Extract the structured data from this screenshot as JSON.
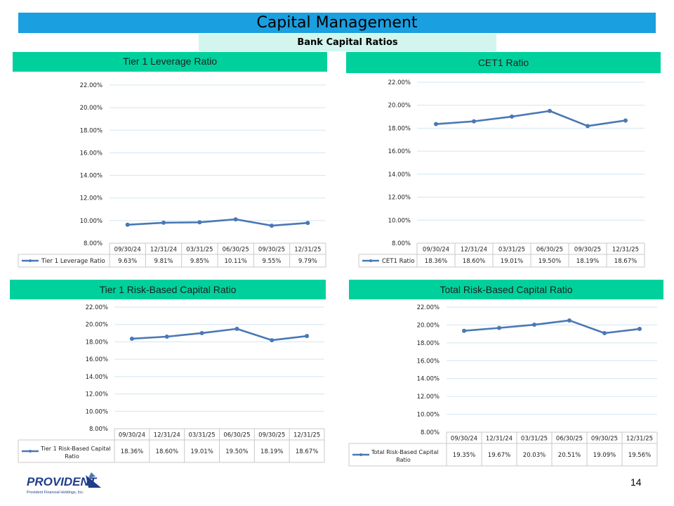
{
  "header": {
    "title": "Capital Management",
    "subtitle": "Bank Capital Ratios"
  },
  "page_number": "14",
  "logo": {
    "name": "PROVIDENT",
    "tagline": "Provident Financial Holdings, Inc."
  },
  "colors": {
    "title_bar": "#1a9fe0",
    "subtitle_bar": "#d2f5ee",
    "panel_header": "#00d19c",
    "series_line": "#4a78b5",
    "gridline": "#d0e6ef",
    "logo_blue": "#1f3d8a"
  },
  "chart_data": [
    {
      "type": "line",
      "title": "Tier 1 Leverage Ratio",
      "categories": [
        "09/30/24",
        "12/31/24",
        "03/31/25",
        "06/30/25",
        "09/30/25",
        "12/31/25"
      ],
      "series": [
        {
          "name": "Tier 1 Leverage Ratio",
          "values": [
            9.63,
            9.81,
            9.85,
            10.11,
            9.55,
            9.79
          ],
          "labels": [
            "9.63%",
            "9.81%",
            "9.85%",
            "10.11%",
            "9.55%",
            "9.79%"
          ]
        }
      ],
      "yticks": [
        "22.00%",
        "20.00%",
        "18.00%",
        "16.00%",
        "14.00%",
        "12.00%",
        "10.00%",
        "8.00%"
      ],
      "ylim": [
        8,
        22
      ],
      "grid": true,
      "legend": "data-table"
    },
    {
      "type": "line",
      "title": "CET1 Ratio",
      "categories": [
        "09/30/24",
        "12/31/24",
        "03/31/25",
        "06/30/25",
        "09/30/25",
        "12/31/25"
      ],
      "series": [
        {
          "name": "CET1 Ratio",
          "values": [
            18.36,
            18.6,
            19.01,
            19.5,
            18.19,
            18.67
          ],
          "labels": [
            "18.36%",
            "18.60%",
            "19.01%",
            "19.50%",
            "18.19%",
            "18.67%"
          ]
        }
      ],
      "yticks": [
        "22.00%",
        "20.00%",
        "18.00%",
        "16.00%",
        "14.00%",
        "12.00%",
        "10.00%",
        "8.00%"
      ],
      "ylim": [
        8,
        22
      ],
      "grid": true,
      "legend": "data-table"
    },
    {
      "type": "line",
      "title": "Tier 1 Risk-Based Capital Ratio",
      "categories": [
        "09/30/24",
        "12/31/24",
        "03/31/25",
        "06/30/25",
        "09/30/25",
        "12/31/25"
      ],
      "series": [
        {
          "name": "Tier 1 Risk-Based Capital Ratio",
          "name_lines": [
            "Tier 1 Risk-Based Capital",
            "Ratio"
          ],
          "values": [
            18.36,
            18.6,
            19.01,
            19.5,
            18.19,
            18.67
          ],
          "labels": [
            "18.36%",
            "18.60%",
            "19.01%",
            "19.50%",
            "18.19%",
            "18.67%"
          ]
        }
      ],
      "yticks": [
        "22.00%",
        "20.00%",
        "18.00%",
        "16.00%",
        "14.00%",
        "12.00%",
        "10.00%",
        "8.00%"
      ],
      "ylim": [
        8,
        22
      ],
      "grid": true,
      "legend": "data-table"
    },
    {
      "type": "line",
      "title": "Total Risk-Based Capital Ratio",
      "categories": [
        "09/30/24",
        "12/31/24",
        "03/31/25",
        "06/30/25",
        "09/30/25",
        "12/31/25"
      ],
      "series": [
        {
          "name": "Total Risk-Based Capital Ratio",
          "name_lines": [
            "Total Risk-Based Capital",
            "Ratio"
          ],
          "values": [
            19.35,
            19.67,
            20.03,
            20.51,
            19.09,
            19.56
          ],
          "labels": [
            "19.35%",
            "19.67%",
            "20.03%",
            "20.51%",
            "19.09%",
            "19.56%"
          ]
        }
      ],
      "yticks": [
        "22.00%",
        "20.00%",
        "18.00%",
        "16.00%",
        "14.00%",
        "12.00%",
        "10.00%",
        "8.00%"
      ],
      "ylim": [
        8,
        22
      ],
      "grid": true,
      "legend": "data-table"
    }
  ]
}
